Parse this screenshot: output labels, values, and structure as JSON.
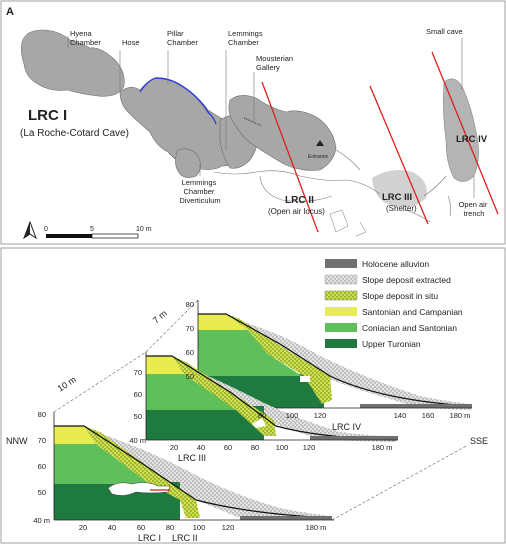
{
  "panel_a": {
    "panel_letter": "A",
    "site_main": "LRC I",
    "site_main_sub": "(La Roche-Cotard Cave)",
    "chambers": {
      "hyena": [
        "Hyena",
        "Chamber"
      ],
      "hose": [
        "Hose"
      ],
      "pillar": [
        "Pillar",
        "Chamber"
      ],
      "lemmings": [
        "Lemmings",
        "Chamber"
      ],
      "mousterian": [
        "Mousterian",
        "Gallery"
      ],
      "small_cave": [
        "Small cave"
      ],
      "diverticulum": [
        "Lemmings",
        "Chamber",
        "Diverticulum"
      ],
      "open_air_trench": [
        "Open air",
        "trench"
      ]
    },
    "entrance": "Entrance",
    "lrc2": "LRC II",
    "lrc2_sub": "(Open air locus)",
    "lrc3": "LRC III",
    "lrc3_sub": "(Shelter)",
    "lrc4": "LRC IV",
    "scale": {
      "zero": "0",
      "mid": "5",
      "end": "10 m"
    },
    "north_icon": "north-arrow-icon"
  },
  "panel_b": {
    "legend": [
      {
        "label": "Holocene alluvion",
        "color": "#707070",
        "pattern": "solid"
      },
      {
        "label": "Slope deposit extracted",
        "color": "#d9d9d9",
        "pattern": "dots"
      },
      {
        "label": "Slope deposit in situ",
        "color": "#c5d94a",
        "pattern": "dots"
      },
      {
        "label": "Santonian and Campanian",
        "color": "#e8ec4e",
        "pattern": "solid"
      },
      {
        "label": "Coniacian and Santonian",
        "color": "#5fbf5a",
        "pattern": "solid"
      },
      {
        "label": "Upper Turonian",
        "color": "#1e7a3e",
        "pattern": "solid"
      }
    ],
    "direction_left": "NNW",
    "direction_right": "SSE",
    "spacing_1": "10 m",
    "spacing_2": "7 m",
    "sections": [
      {
        "name_a": "LRC I",
        "name_b": "LRC II",
        "y_ticks": [
          "80",
          "70",
          "60",
          "50",
          "40 m"
        ],
        "x_ticks": [
          "20",
          "40",
          "60",
          "80",
          "100",
          "120",
          "180 m"
        ]
      },
      {
        "name_a": "LRC III",
        "y_ticks": [
          "70",
          "60",
          "50",
          "40 m"
        ],
        "x_ticks": [
          "20",
          "40",
          "60",
          "80",
          "100",
          "120",
          "180 m"
        ]
      },
      {
        "name_a": "LRC IV",
        "y_ticks": [
          "80",
          "70",
          "60",
          "50",
          "40 m"
        ],
        "x_ticks": [
          "20",
          "40",
          "60",
          "80",
          "100",
          "120",
          "140",
          "160",
          "180 m"
        ]
      }
    ]
  }
}
